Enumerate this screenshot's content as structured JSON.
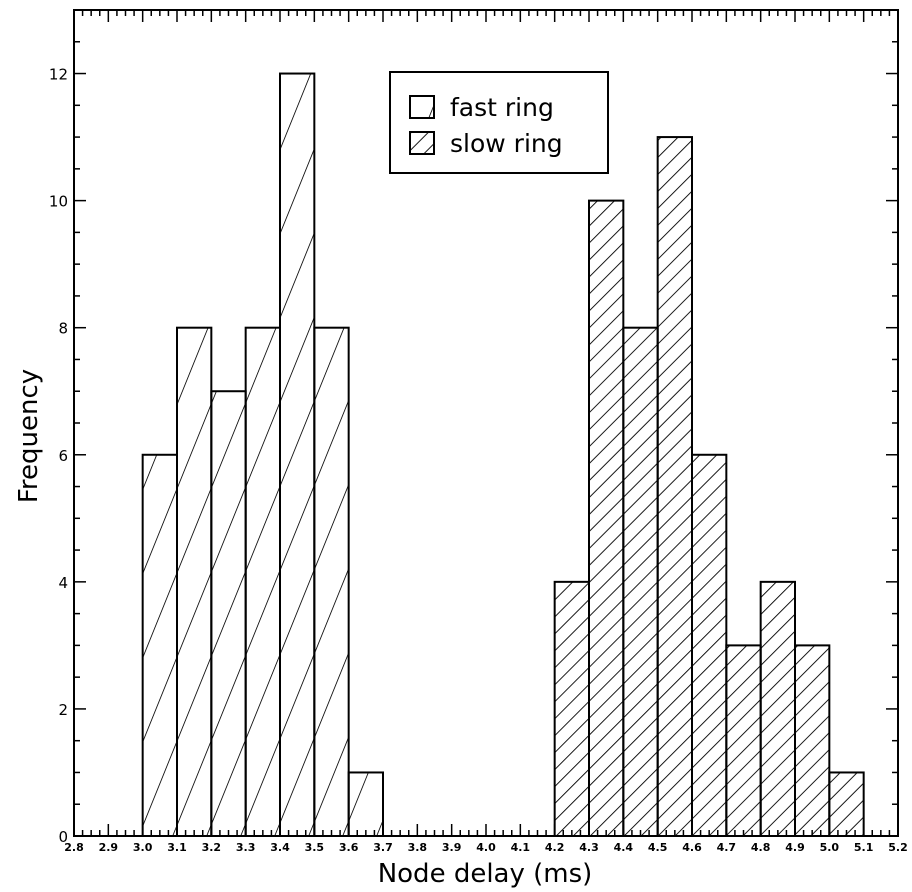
{
  "chart_data": {
    "type": "bar",
    "title": "",
    "xlabel": "Node delay (ms)",
    "ylabel": "Frequency",
    "xlim": [
      2.8,
      5.2
    ],
    "ylim": [
      0,
      13
    ],
    "x_ticks": [
      "2.8",
      "2.9",
      "3.0",
      "3.1",
      "3.2",
      "3.3",
      "3.4",
      "3.5",
      "3.6",
      "3.7",
      "3.8",
      "3.9",
      "4.0",
      "4.1",
      "4.2",
      "4.3",
      "4.4",
      "4.5",
      "4.6",
      "4.7",
      "4.8",
      "4.9",
      "5.0",
      "5.1",
      "5.2"
    ],
    "y_ticks": [
      "0",
      "2",
      "4",
      "6",
      "8",
      "10",
      "12"
    ],
    "grid": false,
    "legend_position": "top-center",
    "bin_width": 0.1,
    "series": [
      {
        "name": "fast ring",
        "hatch": "forward-diagonal",
        "bins": [
          {
            "x0": 3.0,
            "value": 6
          },
          {
            "x0": 3.1,
            "value": 8
          },
          {
            "x0": 3.2,
            "value": 7
          },
          {
            "x0": 3.3,
            "value": 8
          },
          {
            "x0": 3.4,
            "value": 12
          },
          {
            "x0": 3.5,
            "value": 8
          },
          {
            "x0": 3.6,
            "value": 1
          }
        ]
      },
      {
        "name": "slow ring",
        "hatch": "backward-diagonal",
        "bins": [
          {
            "x0": 4.2,
            "value": 4
          },
          {
            "x0": 4.3,
            "value": 10
          },
          {
            "x0": 4.4,
            "value": 8
          },
          {
            "x0": 4.5,
            "value": 11
          },
          {
            "x0": 4.6,
            "value": 6
          },
          {
            "x0": 4.7,
            "value": 3
          },
          {
            "x0": 4.8,
            "value": 4
          },
          {
            "x0": 4.9,
            "value": 3
          },
          {
            "x0": 5.0,
            "value": 1
          }
        ]
      }
    ]
  }
}
